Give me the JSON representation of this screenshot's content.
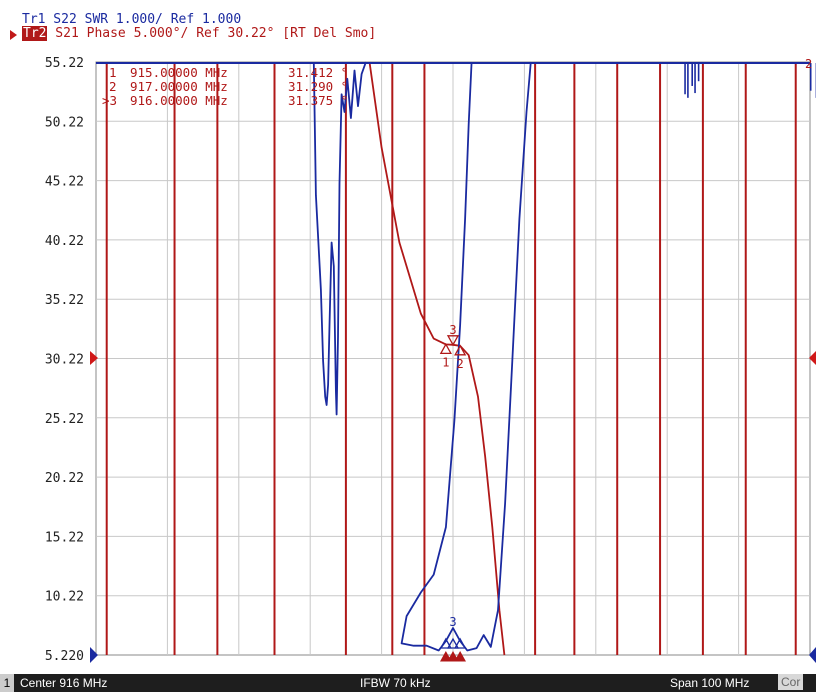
{
  "header": {
    "trace1": "Tr1 S22 SWR 1.000/ Ref 1.000",
    "trace2_tag": "Tr2",
    "trace2": " S21 Phase 5.000°/ Ref 30.22° [RT Del Smo]"
  },
  "markers_table": [
    {
      "id": "1",
      "freq": "915.00000 MHz",
      "value": "31.412 °"
    },
    {
      "id": "2",
      "freq": "917.00000 MHz",
      "value": "31.290 °"
    },
    {
      "id": ">3",
      "freq": "916.00000 MHz",
      "value": "31.375 °"
    }
  ],
  "footer": {
    "channel": "1",
    "center": "Center 916 MHz",
    "ifbw": "IFBW 70 kHz",
    "span": "Span 100 MHz",
    "cor": "Cor"
  },
  "colors": {
    "trace1": "#1a2aa0",
    "trace2": "#b01818",
    "grid": "#c8c8c8"
  },
  "chart_data": {
    "type": "line",
    "title": "",
    "xlabel": "",
    "ylabel": "",
    "x_range_mhz": [
      866,
      966
    ],
    "ylim": [
      5.22,
      55.22
    ],
    "yticks": [
      "55.22",
      "50.22",
      "45.22",
      "40.22",
      "35.22",
      "30.22",
      "25.22",
      "20.22",
      "15.22",
      "10.22",
      "5.220"
    ],
    "grid": true,
    "reference_value": 30.22,
    "series": [
      {
        "name": "Tr2",
        "wrap_freqs_mhz": [
          867.5,
          877,
          883,
          891,
          901,
          907.5,
          912,
          927.5,
          933,
          939,
          945,
          951,
          957,
          964
        ],
        "points": [
          [
            904.3,
            55.22
          ],
          [
            906,
            48
          ],
          [
            908.5,
            40
          ],
          [
            911.5,
            34
          ],
          [
            913.3,
            31.9
          ],
          [
            915,
            31.41
          ],
          [
            916,
            31.375
          ],
          [
            917,
            31.29
          ],
          [
            918.2,
            30.5
          ],
          [
            919.5,
            27
          ],
          [
            920.5,
            22
          ],
          [
            921.5,
            16
          ],
          [
            922.5,
            9
          ],
          [
            923.2,
            5.22
          ]
        ]
      },
      {
        "name": "Tr1",
        "segments": [
          [
            [
              896.5,
              55.22
            ],
            [
              896.8,
              44
            ],
            [
              897.5,
              36
            ],
            [
              897.8,
              30
            ],
            [
              898.1,
              27
            ],
            [
              898.3,
              26.3
            ],
            [
              898.5,
              28
            ],
            [
              898.7,
              33
            ],
            [
              899.0,
              40
            ],
            [
              899.3,
              38
            ],
            [
              899.5,
              31
            ],
            [
              899.6,
              27.5
            ],
            [
              899.7,
              25.5
            ],
            [
              899.9,
              32
            ],
            [
              900.1,
              45
            ],
            [
              900.4,
              52.5
            ],
            [
              900.8,
              51
            ],
            [
              901.2,
              53.8
            ],
            [
              901.7,
              50.5
            ],
            [
              902.2,
              54.5
            ],
            [
              902.7,
              51.5
            ],
            [
              903.2,
              54.2
            ],
            [
              903.8,
              55.22
            ]
          ],
          [
            [
              918.6,
              55.22
            ],
            [
              918.2,
              50
            ],
            [
              917.7,
              42
            ],
            [
              917.0,
              33
            ],
            [
              916.2,
              25
            ],
            [
              915.0,
              16
            ],
            [
              913.3,
              12
            ],
            [
              911.5,
              10.5
            ],
            [
              909.5,
              8.5
            ],
            [
              908.8,
              6.2
            ],
            [
              910.5,
              6.0
            ],
            [
              912.3,
              6.0
            ],
            [
              914.0,
              5.6
            ],
            [
              915.0,
              6.4
            ],
            [
              916.0,
              7.5
            ],
            [
              917.0,
              6.4
            ],
            [
              918.0,
              5.6
            ],
            [
              919.3,
              5.8
            ],
            [
              920.3,
              6.9
            ],
            [
              921.3,
              5.9
            ],
            [
              922.3,
              9.0
            ],
            [
              923.3,
              18
            ],
            [
              924.3,
              30
            ],
            [
              925.3,
              42
            ],
            [
              926.3,
              51
            ],
            [
              926.9,
              55.22
            ]
          ]
        ],
        "spikes_mhz": [
          [
            948.5,
            52.5
          ],
          [
            948.9,
            52.2
          ],
          [
            949.5,
            53.2
          ],
          [
            949.9,
            52.6
          ],
          [
            950.4,
            53.6
          ],
          [
            966.1,
            52.8
          ],
          [
            966.9,
            52.2
          ],
          [
            967.6,
            53.8
          ],
          [
            968.4,
            54.3
          ]
        ]
      }
    ],
    "markers": [
      {
        "id": "1",
        "freq_mhz": 915,
        "value_deg": 31.412
      },
      {
        "id": "2",
        "freq_mhz": 917,
        "value_deg": 31.29
      },
      {
        "id": "3",
        "freq_mhz": 916,
        "value_deg": 31.375
      }
    ]
  }
}
